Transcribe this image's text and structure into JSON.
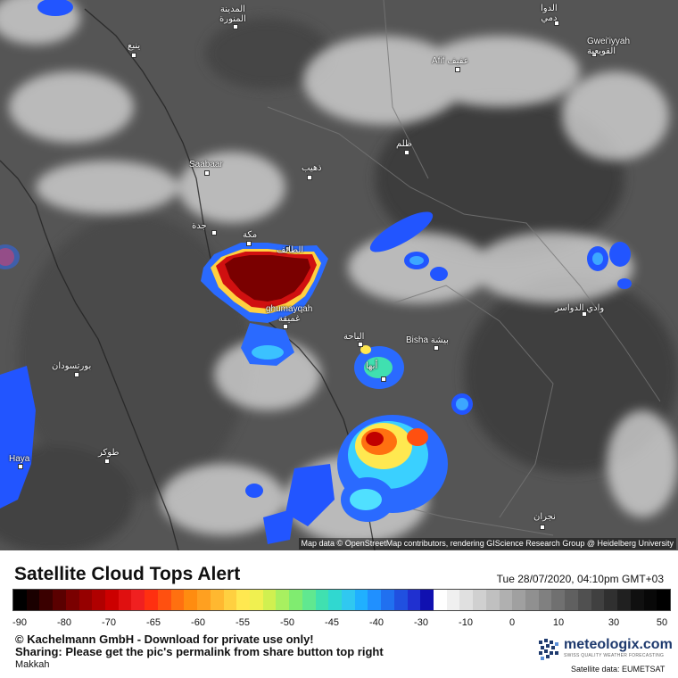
{
  "map": {
    "attribution": "Map data © OpenStreetMap contributors, rendering GIScience Research Group @ Heidelberg University",
    "places": [
      {
        "id": "madinah",
        "label": "المدينة\nالمنورة"
      },
      {
        "id": "yanbu",
        "label": "ينبع"
      },
      {
        "id": "saabaar",
        "label": "Saabaar"
      },
      {
        "id": "jeddah",
        "label": "جدة"
      },
      {
        "id": "makkah",
        "label": "مكة"
      },
      {
        "id": "taif",
        "label": "الطائف"
      },
      {
        "id": "ghumayqah",
        "label": "ghumayqah\nغميقة"
      },
      {
        "id": "afif",
        "label": "Afif عفيف"
      },
      {
        "id": "gweiiyyah",
        "label": "Gwei'iyyah\nالقويعية"
      },
      {
        "id": "zalim",
        "label": "ظلم"
      },
      {
        "id": "dhaib",
        "label": "ذهيب"
      },
      {
        "id": "aldawasir",
        "label": "وادي الدواسر"
      },
      {
        "id": "albaha",
        "label": "الباحة"
      },
      {
        "id": "bisha",
        "label": "Bisha بيشة"
      },
      {
        "id": "portsudan",
        "label": "بورتسودان"
      },
      {
        "id": "tokar",
        "label": "طوكر"
      },
      {
        "id": "haya",
        "label": "Haya"
      },
      {
        "id": "abha",
        "label": "أبها"
      },
      {
        "id": "najran",
        "label": "نجران"
      },
      {
        "id": "alduwadimi",
        "label": "الدوا\nدمي"
      }
    ]
  },
  "footer": {
    "title": "Satellite Cloud Tops Alert",
    "datetime": "Tue 28/07/2020, 04:10pm GMT+03",
    "scale_ticks": [
      "-90",
      "-80",
      "-70",
      "-65",
      "-60",
      "-55",
      "-50",
      "-45",
      "-40",
      "-30",
      "-10",
      "0",
      "10",
      "30",
      "50"
    ],
    "copyright": "© Kachelmann GmbH - Download for private use only!",
    "sharing": "Sharing: Please get the pic's permalink from share button top right",
    "location": "Makkah",
    "logo": "meteologix.com",
    "logo_tagline": "SWISS QUALITY WEATHER FORECASTING",
    "data_source": "Satellite data: EUMETSAT"
  },
  "colors": {
    "scale": [
      "#000000",
      "#1a0000",
      "#3a0000",
      "#5a0000",
      "#7a0000",
      "#960000",
      "#b00000",
      "#cc0000",
      "#e01010",
      "#f02020",
      "#ff3010",
      "#ff5010",
      "#ff7010",
      "#ff8c10",
      "#ffa020",
      "#ffb830",
      "#ffd040",
      "#ffe850",
      "#f0f050",
      "#d0f050",
      "#a8f060",
      "#80ec70",
      "#60e890",
      "#40e0b0",
      "#30d8d0",
      "#30c8f0",
      "#20b0ff",
      "#2090ff",
      "#2070f0",
      "#2050e0",
      "#2030d0",
      "#1010b0",
      "#ffffff",
      "#f0f0f0",
      "#e0e0e0",
      "#d0d0d0",
      "#c0c0c0",
      "#b0b0b0",
      "#a0a0a0",
      "#909090",
      "#808080",
      "#707070",
      "#606060",
      "#505050",
      "#404040",
      "#303030",
      "#202020",
      "#101010",
      "#080808",
      "#000000"
    ]
  }
}
